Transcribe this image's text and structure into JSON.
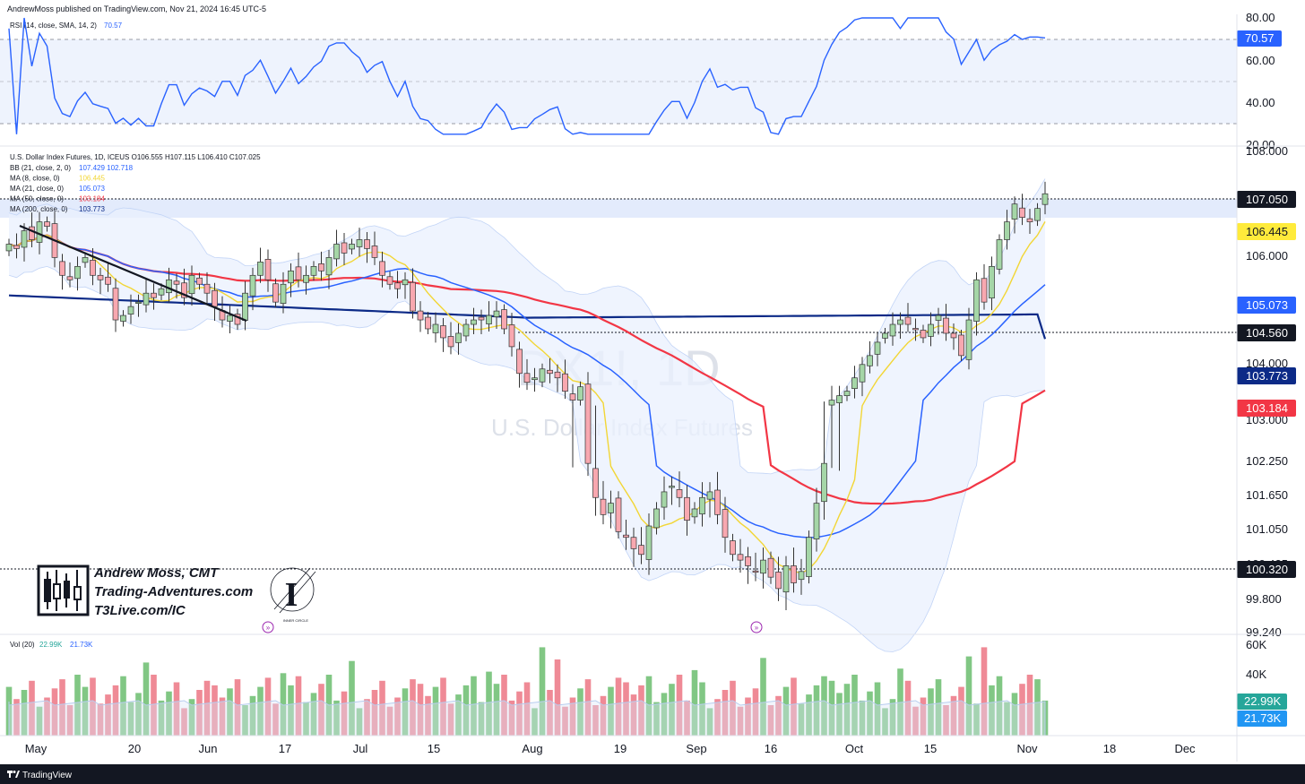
{
  "header": {
    "publisher_line": "AndrewMoss published on TradingView.com, Nov 21, 2024 16:45 UTC-5"
  },
  "rsi_pane": {
    "legend": "RSI (14, close, SMA, 14, 2)",
    "legend_value": "70.57",
    "current_value": "70.57",
    "band_upper": 70,
    "band_mid": 50,
    "band_lower": 30,
    "ylim": [
      25,
      80
    ],
    "ticks": [
      "80.00",
      "60.00",
      "40.00",
      "20.00"
    ],
    "colors": {
      "line": "#2962ff",
      "band": "#e8f0fd",
      "badge": "#2962ff"
    }
  },
  "price_pane": {
    "symbol_line": "U.S. Dollar Index Futures, 1D, ICEUS  O106.555  H107.115  L106.410  C107.025",
    "legends": [
      {
        "label": "BB (21, close, 2, 0)",
        "values": "107.429  102.718",
        "color": "#2962ff"
      },
      {
        "label": "MA (8, close, 0)",
        "values": "106.445",
        "color": "#f2d635"
      },
      {
        "label": "MA (21, close, 0)",
        "values": "105.073",
        "color": "#2962ff"
      },
      {
        "label": "MA (50, close, 0)",
        "values": "103.184",
        "color": "#f23645"
      },
      {
        "label": "MA (200, close, 0)",
        "values": "103.773",
        "color": "#0c2a87"
      }
    ],
    "watermark_symbol": "DX1!, 1D",
    "watermark_name": "U.S. Dollar Index Futures",
    "ticks": [
      "108.000",
      "106.000",
      "104.000",
      "103.000",
      "102.250",
      "101.650",
      "101.050",
      "100.425",
      "99.800",
      "99.240"
    ],
    "badges": [
      {
        "text": "107.050",
        "bg": "#131722",
        "fg": "#ffffff"
      },
      {
        "text": "106.445",
        "bg": "#ffeb3b",
        "fg": "#131722"
      },
      {
        "text": "105.073",
        "bg": "#2962ff",
        "fg": "#ffffff"
      },
      {
        "text": "104.560",
        "bg": "#131722",
        "fg": "#ffffff"
      },
      {
        "text": "103.773",
        "bg": "#0c2a87",
        "fg": "#ffffff"
      },
      {
        "text": "103.184",
        "bg": "#f23645",
        "fg": "#ffffff"
      },
      {
        "text": "100.320",
        "bg": "#131722",
        "fg": "#ffffff"
      }
    ],
    "branding": {
      "line1": "Andrew Moss, CMT",
      "line2": "Trading-Adventures.com",
      "line3": "T3Live.com/IC",
      "seal_text": "INNER CIRCLE"
    }
  },
  "volume_pane": {
    "legend": "Vol (20)",
    "legend_value_1": "22.99K",
    "legend_value_2": "21.73K",
    "ticks": [
      "60K",
      "40K"
    ],
    "badges": [
      {
        "text": "22.99K",
        "bg": "#26a69a",
        "fg": "#ffffff"
      },
      {
        "text": "21.73K",
        "bg": "#2196f3",
        "fg": "#ffffff"
      }
    ]
  },
  "x_axis": {
    "labels": [
      "May",
      "20",
      "Jun",
      "17",
      "Jul",
      "15",
      "Aug",
      "19",
      "Sep",
      "16",
      "Oct",
      "15",
      "Nov",
      "18",
      "Dec"
    ]
  },
  "footer": {
    "brand": "TradingView"
  },
  "chart_data": {
    "type": "candlestick",
    "timeframe": "1D",
    "period": "May 2024 – Nov 21, 2024",
    "ohlc_last": {
      "open": 106.555,
      "high": 107.115,
      "low": 106.41,
      "close": 107.025
    },
    "closes": [
      105.9,
      105.8,
      106.2,
      106.0,
      106.4,
      106.3,
      105.6,
      105.2,
      105.1,
      105.4,
      105.6,
      105.2,
      105.1,
      105.0,
      104.2,
      104.3,
      104.5,
      104.6,
      104.8,
      104.7,
      104.9,
      105.1,
      105.0,
      104.7,
      105.2,
      105.0,
      104.8,
      104.5,
      104.2,
      104.3,
      104.1,
      104.8,
      105.2,
      105.5,
      105.1,
      104.6,
      105.0,
      105.3,
      105.1,
      105.2,
      105.4,
      105.3,
      105.6,
      105.9,
      105.7,
      105.9,
      106.0,
      105.8,
      105.6,
      105.2,
      105.0,
      104.9,
      105.1,
      104.4,
      104.2,
      104.0,
      104.1,
      103.8,
      103.6,
      103.9,
      104.1,
      104.2,
      104.2,
      104.3,
      104.4,
      104.0,
      103.6,
      103.0,
      102.8,
      102.9,
      103.1,
      103.0,
      102.9,
      102.6,
      102.4,
      102.7,
      102.2,
      101.6,
      101.3,
      101.5,
      101.0,
      100.9,
      100.7,
      100.6,
      101.1,
      101.4,
      101.7,
      101.8,
      101.6,
      101.2,
      101.4,
      101.6,
      101.7,
      101.3,
      100.9,
      100.6,
      100.5,
      100.4,
      100.3,
      100.5,
      100.2,
      100.0,
      100.4,
      100.1,
      100.3,
      100.9,
      101.5,
      102.2,
      102.4,
      102.5,
      102.6,
      102.9,
      103.2,
      103.4,
      103.7,
      103.9,
      104.1,
      104.2,
      104.1,
      104.0,
      103.8,
      104.1,
      104.3,
      103.9,
      103.8,
      103.4,
      104.2,
      105.1,
      104.6,
      105.4,
      106.0,
      106.4,
      106.8,
      106.5,
      106.4,
      106.7,
      107.03
    ],
    "ma200_last": 103.773,
    "ma50_last": 103.184,
    "ma21_last": 105.073,
    "ma8_last": 106.445,
    "bb_upper_last": 107.429,
    "bb_lower_last": 102.718,
    "horizontal_levels": [
      107.05,
      104.56,
      100.32
    ],
    "rsi_last": 70.57,
    "volume_last": "22.99K",
    "volume_ma_last": "21.73K",
    "ylim": [
      99.24,
      108.0
    ],
    "series": [
      {
        "name": "MA (8, close, 0)",
        "color": "#f2d635"
      },
      {
        "name": "MA (21, close, 0)",
        "color": "#2962ff"
      },
      {
        "name": "MA (50, close, 0)",
        "color": "#f23645"
      },
      {
        "name": "MA (200, close, 0)",
        "color": "#0c2a87"
      }
    ]
  }
}
